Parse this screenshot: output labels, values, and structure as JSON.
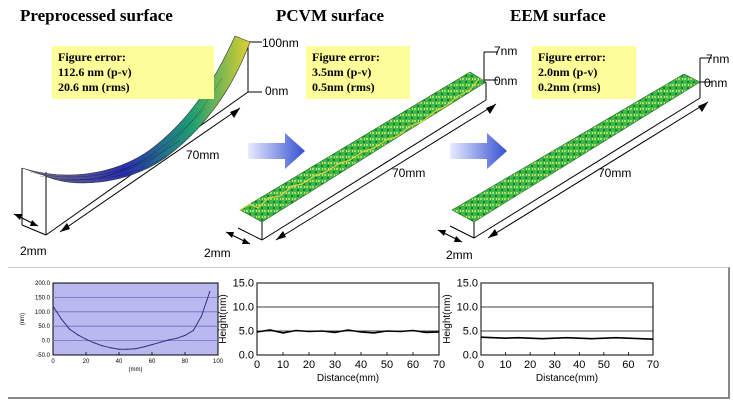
{
  "panels": [
    {
      "title": "Preprocessed surface",
      "err_title": "Figure error:",
      "err_pv": "112.6 nm (p-v)",
      "err_rms": "20.6 nm (rms)",
      "zmax": "100nm",
      "zmin": "0nm",
      "length": "70mm",
      "width": "2mm"
    },
    {
      "title": "PCVM surface",
      "err_title": "Figure error:",
      "err_pv": "3.5nm (p-v)",
      "err_rms": "0.5nm (rms)",
      "zmax": "7nm",
      "zmin": "0nm",
      "length": "70mm",
      "width": "2mm"
    },
    {
      "title": "EEM surface",
      "err_title": "Figure error:",
      "err_pv": "2.0nm (p-v)",
      "err_rms": "0.2nm (rms)",
      "zmax": "7nm",
      "zmin": "0nm",
      "length": "70mm",
      "width": "2mm"
    }
  ],
  "colors": {
    "error_box": "#fdfd9a",
    "arrow": "#4a66d8",
    "profile_bg": "#b9b9f0",
    "surface_green": "#3cb84a"
  },
  "chart_data": [
    {
      "type": "line",
      "title": "",
      "xlabel": "(mm)",
      "ylabel": "(nm)",
      "xlim": [
        0,
        100
      ],
      "ylim": [
        -50,
        200
      ],
      "xticks": [
        "0",
        "20",
        "40",
        "60",
        "80",
        "100"
      ],
      "yticks": [
        "200.0",
        "150.0",
        "100.0",
        "50.0",
        "0.0",
        "-50.0"
      ],
      "x": [
        0,
        5,
        10,
        15,
        20,
        25,
        30,
        35,
        40,
        45,
        50,
        55,
        60,
        65,
        70,
        75,
        80,
        85,
        90,
        95
      ],
      "y": [
        120,
        75,
        40,
        20,
        5,
        -8,
        -18,
        -25,
        -30,
        -30,
        -28,
        -22,
        -14,
        -6,
        2,
        8,
        18,
        35,
        85,
        170
      ]
    },
    {
      "type": "line",
      "title": "",
      "xlabel": "Distance(mm)",
      "ylabel": "Height(nm)",
      "xlim": [
        0,
        70
      ],
      "ylim": [
        0,
        15
      ],
      "xticks": [
        "0",
        "10",
        "20",
        "30",
        "40",
        "50",
        "60",
        "70"
      ],
      "yticks": [
        "15.0",
        "10.0",
        "5.0",
        "0.0"
      ],
      "x": [
        0,
        5,
        10,
        15,
        20,
        25,
        30,
        35,
        40,
        45,
        50,
        55,
        60,
        65,
        70
      ],
      "y": [
        4.8,
        5.2,
        4.6,
        5.1,
        4.9,
        5.0,
        4.7,
        5.2,
        4.8,
        4.6,
        5.0,
        4.9,
        5.1,
        4.7,
        4.8
      ]
    },
    {
      "type": "line",
      "title": "",
      "xlabel": "Distance(mm)",
      "ylabel": "Height(nm)",
      "xlim": [
        0,
        70
      ],
      "ylim": [
        0,
        15
      ],
      "xticks": [
        "0",
        "10",
        "20",
        "30",
        "40",
        "50",
        "60",
        "70"
      ],
      "yticks": [
        "15.0",
        "10.0",
        "5.0",
        "0.0"
      ],
      "x": [
        0,
        5,
        10,
        15,
        20,
        25,
        30,
        35,
        40,
        45,
        50,
        55,
        60,
        65,
        70
      ],
      "y": [
        3.7,
        3.6,
        3.5,
        3.6,
        3.5,
        3.4,
        3.5,
        3.6,
        3.5,
        3.4,
        3.5,
        3.6,
        3.5,
        3.4,
        3.3
      ]
    }
  ]
}
